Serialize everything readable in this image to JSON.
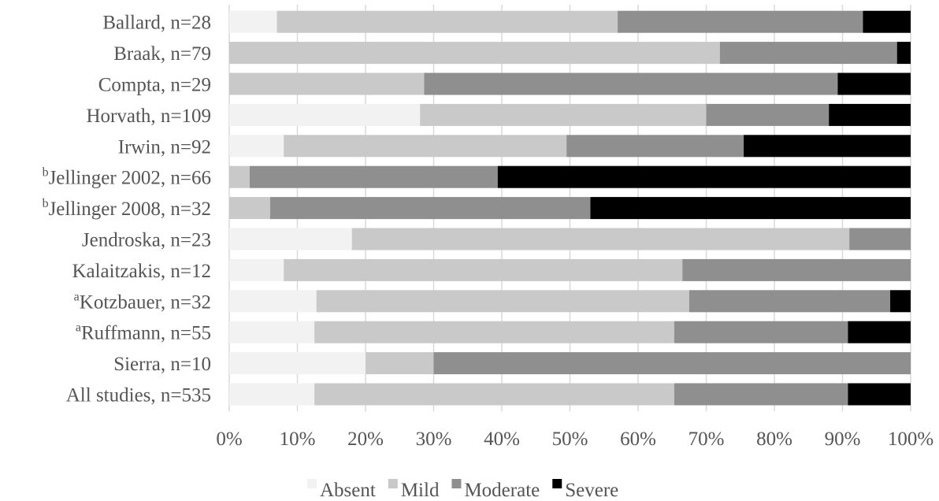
{
  "chart_data": {
    "type": "bar",
    "orientation": "horizontal",
    "stacked": "percent",
    "categories": [
      {
        "sup": "",
        "label": "Ballard, n=28"
      },
      {
        "sup": "",
        "label": "Braak, n=79"
      },
      {
        "sup": "",
        "label": "Compta, n=29"
      },
      {
        "sup": "",
        "label": "Horvath, n=109"
      },
      {
        "sup": "",
        "label": "Irwin, n=92"
      },
      {
        "sup": "b",
        "label": "Jellinger 2002, n=66"
      },
      {
        "sup": "b",
        "label": "Jellinger 2008, n=32"
      },
      {
        "sup": "",
        "label": "Jendroska, n=23"
      },
      {
        "sup": "",
        "label": "Kalaitzakis, n=12"
      },
      {
        "sup": "a",
        "label": "Kotzbauer, n=32"
      },
      {
        "sup": "a",
        "label": "Ruffmann, n=55"
      },
      {
        "sup": "",
        "label": "Sierra, n=10"
      },
      {
        "sup": "",
        "label": "All studies, n=535"
      }
    ],
    "series": [
      {
        "name": "Absent",
        "color": "#f2f2f2",
        "values": [
          7,
          0,
          0,
          28,
          8,
          0,
          0,
          18,
          8,
          12.8,
          12.5,
          20,
          12.5
        ]
      },
      {
        "name": "Mild",
        "color": "#c9c9c9",
        "values": [
          50,
          72,
          28.6,
          42,
          41.5,
          3,
          6,
          73,
          58.5,
          54.7,
          52.8,
          10,
          52.8
        ]
      },
      {
        "name": "Moderate",
        "color": "#8f8f8f",
        "values": [
          36,
          26,
          60.7,
          18,
          26,
          36.4,
          47,
          9,
          33.5,
          29.5,
          25.5,
          70,
          25.5
        ]
      },
      {
        "name": "Severe",
        "color": "#000000",
        "values": [
          7,
          2,
          10.7,
          12,
          24.5,
          60.6,
          47,
          0,
          0,
          3,
          9.2,
          0,
          9.2
        ]
      }
    ],
    "x_ticks": [
      "0%",
      "10%",
      "20%",
      "30%",
      "40%",
      "50%",
      "60%",
      "70%",
      "80%",
      "90%",
      "100%"
    ],
    "xlim": [
      0,
      100
    ],
    "grid": "vertical",
    "legend_position": "bottom"
  }
}
